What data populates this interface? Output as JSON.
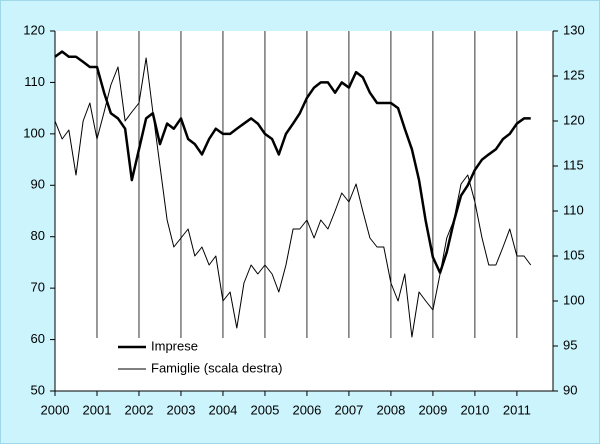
{
  "chart_data": {
    "type": "line",
    "x": [
      2000,
      2000.17,
      2000.33,
      2000.5,
      2000.67,
      2000.83,
      2001,
      2001.17,
      2001.33,
      2001.5,
      2001.67,
      2001.83,
      2002,
      2002.17,
      2002.33,
      2002.5,
      2002.67,
      2002.83,
      2003,
      2003.17,
      2003.33,
      2003.5,
      2003.67,
      2003.83,
      2004,
      2004.17,
      2004.33,
      2004.5,
      2004.67,
      2004.83,
      2005,
      2005.17,
      2005.33,
      2005.5,
      2005.67,
      2005.83,
      2006,
      2006.17,
      2006.33,
      2006.5,
      2006.67,
      2006.83,
      2007,
      2007.17,
      2007.33,
      2007.5,
      2007.67,
      2007.83,
      2008,
      2008.17,
      2008.33,
      2008.5,
      2008.67,
      2008.83,
      2009,
      2009.17,
      2009.33,
      2009.5,
      2009.67,
      2009.83,
      2010,
      2010.17,
      2010.33,
      2010.5,
      2010.67,
      2010.83,
      2011,
      2011.17,
      2011.33
    ],
    "series": [
      {
        "name": "Imprese",
        "color": "#000000",
        "values": [
          115,
          116,
          115,
          115,
          114,
          113,
          113,
          108,
          104,
          103,
          101,
          91,
          97,
          103,
          104,
          98,
          102,
          101,
          103,
          99,
          98,
          96,
          99,
          101,
          100,
          100,
          101,
          102,
          103,
          102,
          100,
          99,
          96,
          100,
          102,
          104,
          107,
          109,
          110,
          110,
          108,
          110,
          109,
          112,
          111,
          108,
          106,
          106,
          106,
          105,
          101,
          97,
          91,
          83,
          76,
          73,
          77,
          83,
          88,
          90,
          93,
          95,
          96,
          97,
          99,
          100,
          102,
          103,
          103
        ]
      },
      {
        "name": "Famiglie (scala destra)",
        "color": "#000000",
        "axis": "y2",
        "values": [
          120,
          118,
          119,
          114,
          120,
          122,
          118,
          121,
          124,
          126,
          120,
          121,
          122,
          127,
          121,
          115,
          109,
          106,
          107,
          108,
          105,
          106,
          104,
          105,
          100,
          101,
          97,
          102,
          104,
          103,
          104,
          103,
          101,
          104,
          108,
          108,
          109,
          107,
          109,
          108,
          110,
          112,
          111,
          113,
          110,
          107,
          106,
          106,
          102,
          100,
          103,
          96,
          101,
          100,
          99,
          103,
          107,
          109,
          113,
          114,
          111,
          107,
          104,
          104,
          106,
          108,
          105,
          105,
          104
        ]
      }
    ],
    "xlim": [
      2000,
      2011.86
    ],
    "xticks": [
      2000,
      2001,
      2002,
      2003,
      2004,
      2005,
      2006,
      2007,
      2008,
      2009,
      2010,
      2011
    ],
    "ylim": [
      50,
      120
    ],
    "yticks": [
      50,
      60,
      70,
      80,
      90,
      100,
      110,
      120
    ],
    "y2lim": [
      90,
      130
    ],
    "y2ticks": [
      90,
      95,
      100,
      105,
      110,
      115,
      120,
      125,
      130
    ],
    "legend": "lower-left"
  }
}
